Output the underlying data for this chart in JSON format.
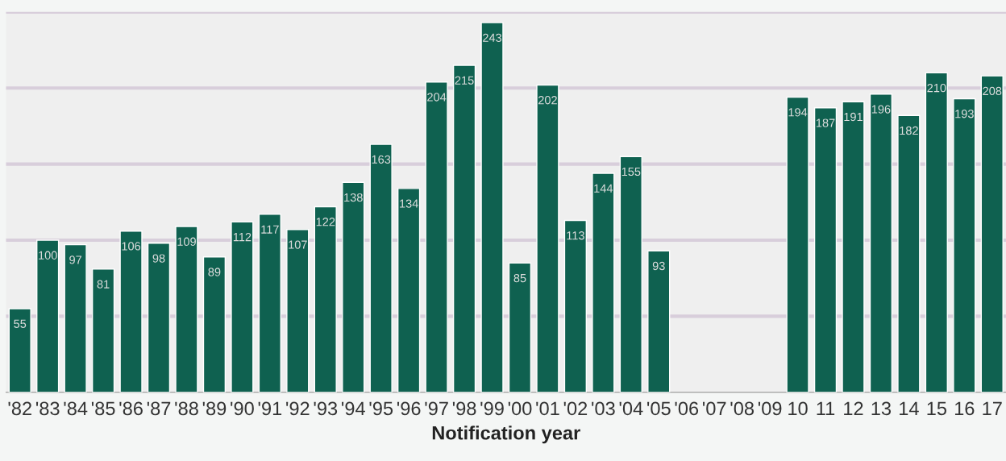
{
  "chart_data": {
    "type": "bar",
    "xlabel": "Notification year",
    "categories": [
      "'82",
      "'83",
      "'84",
      "'85",
      "'86",
      "'87",
      "'88",
      "'89",
      "'90",
      "'91",
      "'92",
      "'93",
      "'94",
      "'95",
      "'96",
      "'97",
      "'98",
      "'99",
      "'00",
      "'01",
      "'02",
      "'03",
      "'04",
      "'05",
      "'06",
      "'07",
      "'08",
      "'09",
      "10",
      "11",
      "12",
      "13",
      "14",
      "15",
      "16",
      "17"
    ],
    "values": [
      55,
      100,
      97,
      81,
      106,
      98,
      109,
      89,
      112,
      117,
      107,
      122,
      138,
      163,
      134,
      204,
      215,
      243,
      85,
      202,
      113,
      144,
      155,
      93,
      null,
      null,
      null,
      null,
      194,
      187,
      191,
      196,
      182,
      210,
      193,
      208
    ],
    "color": "#0f6150",
    "ylim": [
      0,
      250
    ],
    "yticks": [
      {
        "value": 50,
        "label": null
      },
      {
        "value": 100,
        "label": null
      },
      {
        "value": 150,
        "label": null
      },
      {
        "value": 200,
        "label": null
      },
      {
        "value": 250,
        "label": null
      }
    ],
    "grid": "y",
    "tick_labels": "x",
    "data_labels": true
  }
}
